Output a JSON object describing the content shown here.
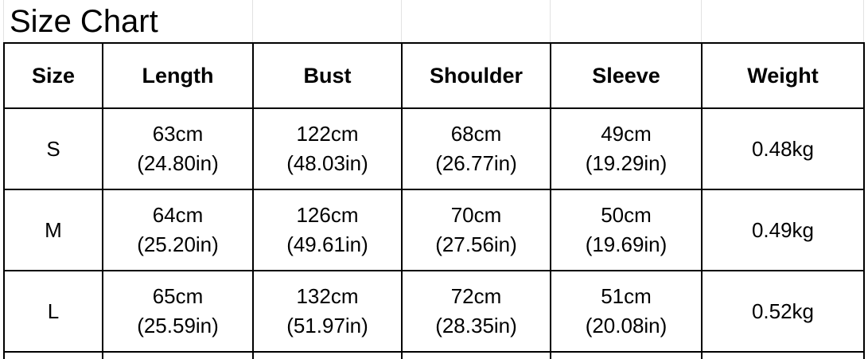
{
  "title": "Size Chart",
  "headers": [
    "Size",
    "Length",
    "Bust",
    "Shoulder",
    "Sleeve",
    "Weight"
  ],
  "rows": [
    {
      "size": "S",
      "length_cm": "63cm",
      "length_in": "(24.80in)",
      "bust_cm": "122cm",
      "bust_in": "(48.03in)",
      "shoulder_cm": "68cm",
      "shoulder_in": "(26.77in)",
      "sleeve_cm": "49cm",
      "sleeve_in": "(19.29in)",
      "weight": "0.48kg"
    },
    {
      "size": "M",
      "length_cm": "64cm",
      "length_in": "(25.20in)",
      "bust_cm": "126cm",
      "bust_in": "(49.61in)",
      "shoulder_cm": "70cm",
      "shoulder_in": "(27.56in)",
      "sleeve_cm": "50cm",
      "sleeve_in": "(19.69in)",
      "weight": "0.49kg"
    },
    {
      "size": "L",
      "length_cm": "65cm",
      "length_in": "(25.59in)",
      "bust_cm": "132cm",
      "bust_in": "(51.97in)",
      "shoulder_cm": "72cm",
      "shoulder_in": "(28.35in)",
      "sleeve_cm": "51cm",
      "sleeve_in": "(20.08in)",
      "weight": "0.52kg"
    }
  ]
}
